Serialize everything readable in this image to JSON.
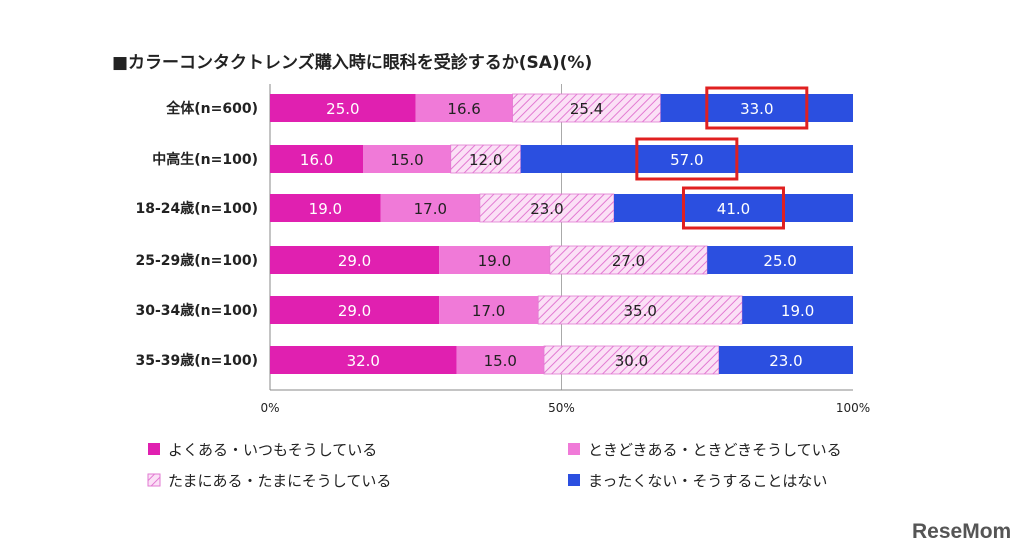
{
  "chart_data": {
    "type": "bar",
    "orientation": "horizontal-stacked",
    "title": "■カラーコンタクトレンズ購入時に眼科を受診するか(SA)(%)",
    "categories": [
      "全体(n=600)",
      "中高生(n=100)",
      "18-24歳(n=100)",
      "25-29歳(n=100)",
      "30-34歳(n=100)",
      "35-39歳(n=100)"
    ],
    "series": [
      {
        "name": "よくある・いつもそうしている",
        "color": "#e020b0",
        "values": [
          25.0,
          16.0,
          19.0,
          29.0,
          29.0,
          32.0
        ]
      },
      {
        "name": "ときどきある・ときどきそうしている",
        "color": "#f07ad8",
        "values": [
          16.6,
          15.0,
          17.0,
          19.0,
          17.0,
          15.0
        ]
      },
      {
        "name": "たまにある・たまにそうしている",
        "color": "#f6c0ec",
        "values": [
          25.4,
          12.0,
          23.0,
          27.0,
          35.0,
          30.0
        ]
      },
      {
        "name": "まったくない・そうすることはない",
        "color": "#2b4fe0",
        "values": [
          33.0,
          57.0,
          41.0,
          25.0,
          19.0,
          23.0
        ]
      }
    ],
    "value_labels": [
      [
        "25.0",
        "16.6",
        "25.4",
        "33.0"
      ],
      [
        "16.0",
        "15.0",
        "12.0",
        "57.0"
      ],
      [
        "19.0",
        "17.0",
        "23.0",
        "41.0"
      ],
      [
        "29.0",
        "19.0",
        "27.0",
        "25.0"
      ],
      [
        "29.0",
        "17.0",
        "35.0",
        "19.0"
      ],
      [
        "32.0",
        "15.0",
        "30.0",
        "23.0"
      ]
    ],
    "xticks": [
      "0%",
      "50%",
      "100%"
    ],
    "xlim": [
      0,
      100
    ],
    "highlighted": [
      {
        "category": 0,
        "series": 3
      },
      {
        "category": 1,
        "series": 3
      },
      {
        "category": 2,
        "series": 3
      }
    ],
    "highlight_color": "#e02020",
    "legend_position": "bottom"
  },
  "watermark": "ReseMom"
}
